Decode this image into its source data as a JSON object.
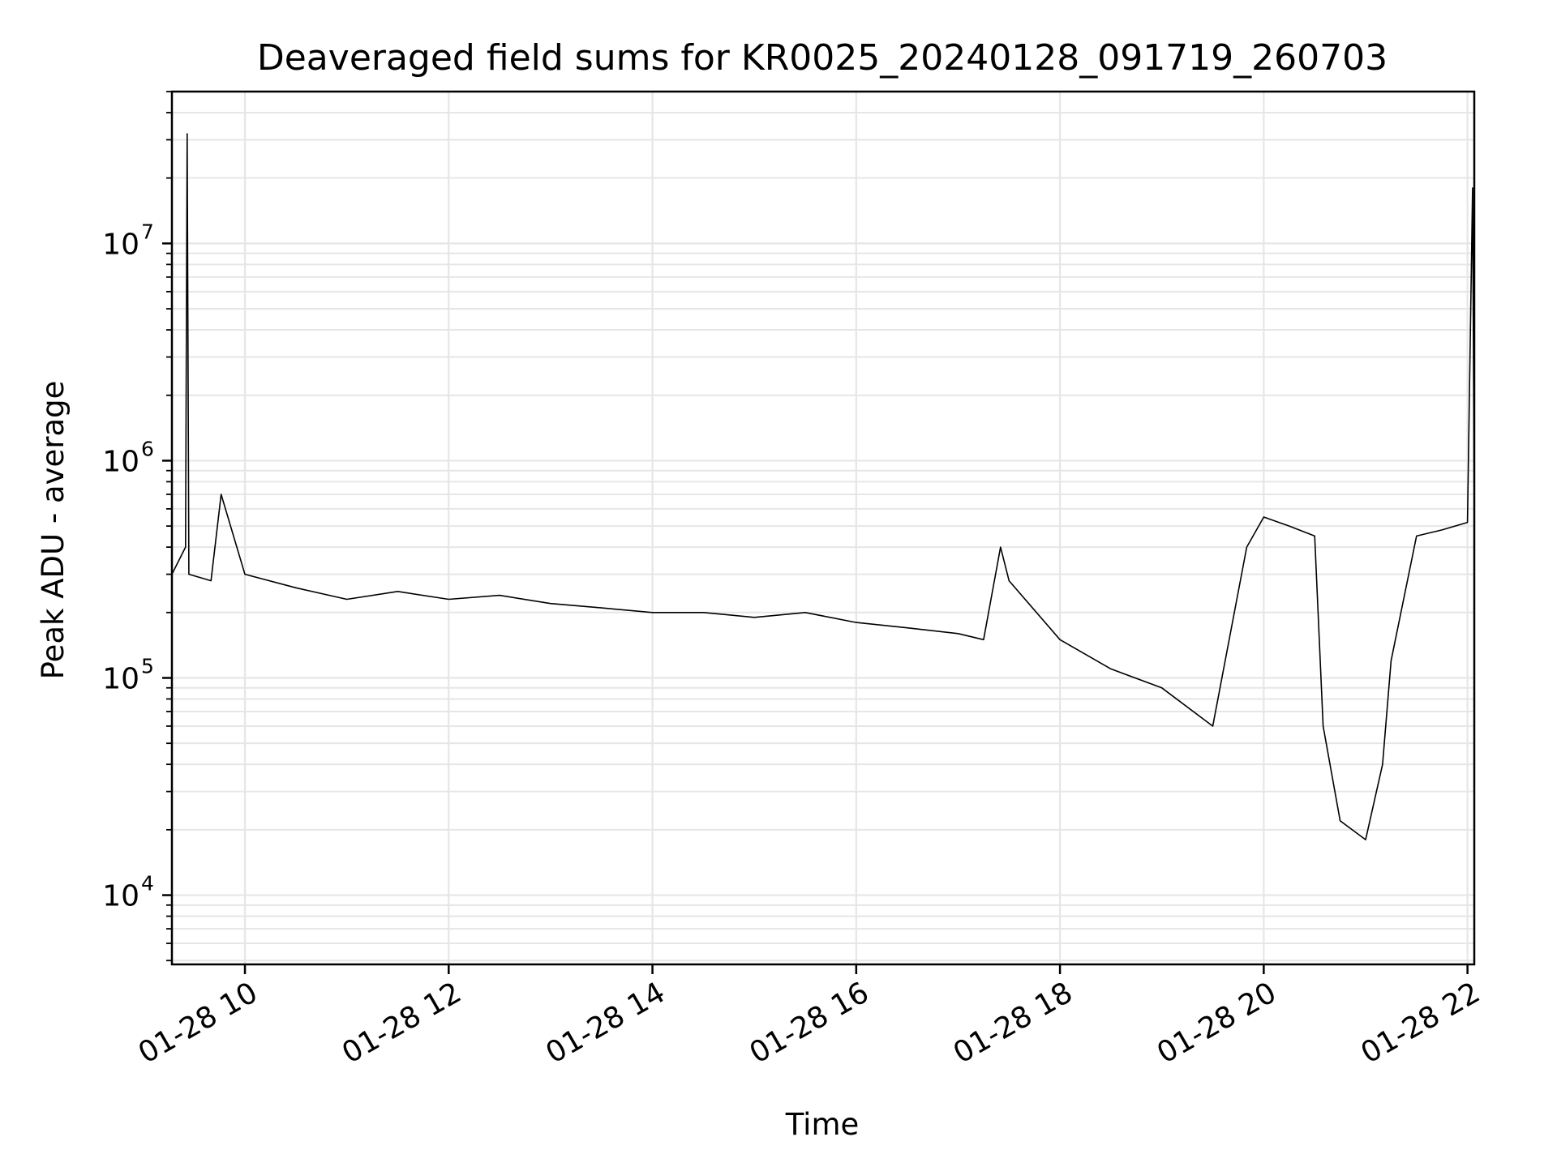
{
  "chart_data": {
    "type": "line",
    "title": "Deaveraged field sums for KR0025_20240128_091719_260703",
    "xlabel": "Time",
    "ylabel": "Peak ADU - average",
    "yscale": "log",
    "ylim": [
      4800,
      50000000
    ],
    "xlim": [
      "2024-01-28 09:17",
      "2024-01-28 22:04"
    ],
    "x_ticks": [
      {
        "value": "2024-01-28 10:00",
        "label": "01-28 10"
      },
      {
        "value": "2024-01-28 12:00",
        "label": "01-28 12"
      },
      {
        "value": "2024-01-28 14:00",
        "label": "01-28 14"
      },
      {
        "value": "2024-01-28 16:00",
        "label": "01-28 16"
      },
      {
        "value": "2024-01-28 18:00",
        "label": "01-28 18"
      },
      {
        "value": "2024-01-28 20:00",
        "label": "01-28 20"
      },
      {
        "value": "2024-01-28 22:00",
        "label": "01-28 22"
      }
    ],
    "y_ticks": [
      {
        "value": 10000,
        "base": "10",
        "exp": "4"
      },
      {
        "value": 100000,
        "base": "10",
        "exp": "5"
      },
      {
        "value": 1000000,
        "base": "10",
        "exp": "6"
      },
      {
        "value": 10000000,
        "base": "10",
        "exp": "7"
      }
    ],
    "grid": true,
    "line_color": "#000000",
    "grid_color": "#e6e6e6",
    "series": [
      {
        "x": [
          "2024-01-28 09:17",
          "2024-01-28 09:25",
          "2024-01-28 09:26",
          "2024-01-28 09:27",
          "2024-01-28 09:40",
          "2024-01-28 09:46",
          "2024-01-28 10:00",
          "2024-01-28 10:30",
          "2024-01-28 11:00",
          "2024-01-28 11:30",
          "2024-01-28 12:00",
          "2024-01-28 12:30",
          "2024-01-28 13:00",
          "2024-01-28 13:30",
          "2024-01-28 14:00",
          "2024-01-28 14:30",
          "2024-01-28 15:00",
          "2024-01-28 15:30",
          "2024-01-28 16:00",
          "2024-01-28 16:30",
          "2024-01-28 17:00",
          "2024-01-28 17:15",
          "2024-01-28 17:25",
          "2024-01-28 17:30",
          "2024-01-28 18:00",
          "2024-01-28 18:30",
          "2024-01-28 19:00",
          "2024-01-28 19:30",
          "2024-01-28 19:50",
          "2024-01-28 20:00",
          "2024-01-28 20:15",
          "2024-01-28 20:30",
          "2024-01-28 20:35",
          "2024-01-28 20:45",
          "2024-01-28 21:00",
          "2024-01-28 21:10",
          "2024-01-28 21:15",
          "2024-01-28 21:30",
          "2024-01-28 21:45",
          "2024-01-28 22:00",
          "2024-01-28 22:03",
          "2024-01-28 22:04"
        ],
        "y": [
          300000,
          400000,
          32000000,
          300000,
          280000,
          700000,
          300000,
          260000,
          230000,
          250000,
          230000,
          240000,
          220000,
          210000,
          200000,
          200000,
          190000,
          200000,
          180000,
          170000,
          160000,
          150000,
          400000,
          280000,
          150000,
          110000,
          90000,
          60000,
          400000,
          550000,
          500000,
          450000,
          60000,
          22000,
          18000,
          40000,
          120000,
          450000,
          480000,
          520000,
          18000000,
          550000
        ]
      }
    ]
  }
}
